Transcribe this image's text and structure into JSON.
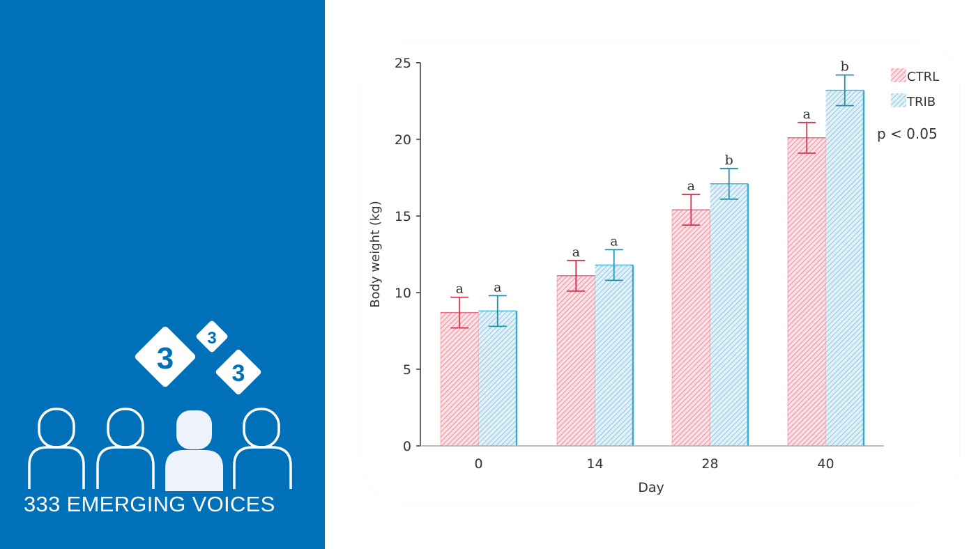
{
  "branding": {
    "title": "333 EMERGING VOICES",
    "badge_digits": [
      "3",
      "3",
      "3"
    ],
    "panel_color": "#0070b8"
  },
  "chart_data": {
    "type": "bar",
    "title": "",
    "xlabel": "Day",
    "ylabel": "Body weight (kg)",
    "categories": [
      "0",
      "14",
      "28",
      "40"
    ],
    "ylim": [
      0,
      25
    ],
    "yticks": [
      0,
      5,
      10,
      15,
      20,
      25
    ],
    "grid": false,
    "legend_position": "top-right",
    "annotation": "p < 0.05",
    "series": [
      {
        "name": "CTRL",
        "color": "#e8506a",
        "fill": "#f6b5c0",
        "values": [
          8.7,
          11.1,
          15.4,
          20.1
        ],
        "errors": [
          1.0,
          1.0,
          1.0,
          1.0
        ],
        "significance_letters": [
          "a",
          "a",
          "a",
          "a"
        ]
      },
      {
        "name": "TRIB",
        "color": "#22a8cc",
        "fill": "#b3dcec",
        "values": [
          8.8,
          11.8,
          17.1,
          23.2
        ],
        "errors": [
          1.0,
          1.0,
          1.0,
          1.0
        ],
        "significance_letters": [
          "a",
          "a",
          "b",
          "b"
        ]
      }
    ]
  }
}
